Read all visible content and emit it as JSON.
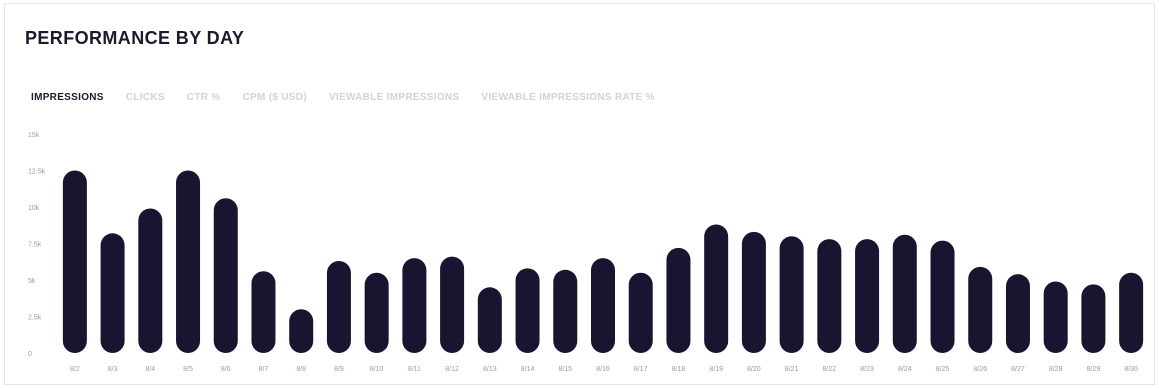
{
  "title": "PERFORMANCE BY DAY",
  "tabs": [
    {
      "label": "IMPRESSIONS",
      "active": true
    },
    {
      "label": "CLICKS",
      "active": false
    },
    {
      "label": "CTR %",
      "active": false
    },
    {
      "label": "CPM ($ USD)",
      "active": false
    },
    {
      "label": "VIEWABLE IMPRESSIONS",
      "active": false
    },
    {
      "label": "VIEWABLE IMPRESSIONS RATE %",
      "active": false
    }
  ],
  "colors": {
    "bar": "#171530",
    "title": "#1b1a2e",
    "tab_inactive": "#d2d2d8"
  },
  "chart_data": {
    "type": "bar",
    "categories": [
      "8/2",
      "8/3",
      "8/4",
      "8/5",
      "8/6",
      "8/7",
      "8/8",
      "8/9",
      "8/10",
      "8/11",
      "8/12",
      "8/13",
      "8/14",
      "8/15",
      "8/16",
      "8/17",
      "8/18",
      "8/19",
      "8/20",
      "8/21",
      "8/22",
      "8/23",
      "8/24",
      "8/25",
      "8/26",
      "8/27",
      "8/28",
      "8/29",
      "8/30"
    ],
    "values": [
      12500,
      8200,
      9900,
      12500,
      10600,
      5600,
      3000,
      6300,
      5500,
      6500,
      6600,
      4500,
      5800,
      5700,
      6500,
      5500,
      7200,
      8800,
      8300,
      8000,
      7800,
      7800,
      8100,
      7700,
      5900,
      5400,
      4900,
      4700,
      5500
    ],
    "yticks": [
      {
        "value": 0,
        "label": "0"
      },
      {
        "value": 2500,
        "label": "2.5k"
      },
      {
        "value": 5000,
        "label": "5k"
      },
      {
        "value": 7500,
        "label": "7.5k"
      },
      {
        "value": 10000,
        "label": "10k"
      },
      {
        "value": 12500,
        "label": "12.5k"
      },
      {
        "value": 15000,
        "label": "15k"
      }
    ],
    "ylim": [
      0,
      15000
    ],
    "grid": false
  }
}
